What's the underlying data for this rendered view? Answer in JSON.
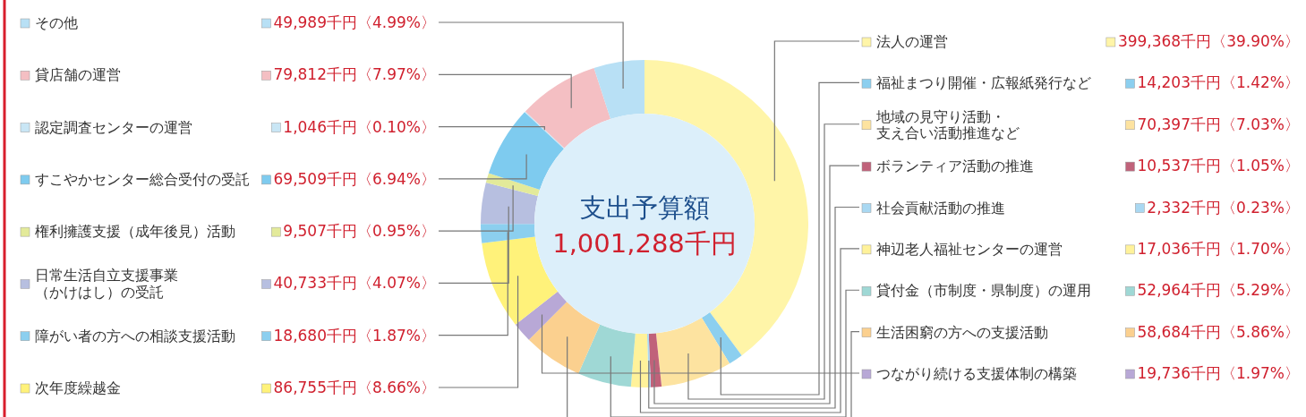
{
  "chart_data": {
    "type": "donut",
    "legend": "top left",
    "title": "支出予算額",
    "subtitle": "1,001,288千円",
    "categories": [
      "法人の運営",
      "福祉まつり開催・広報紙発行など",
      "地域の見守り活動・支え合い活動推進など",
      "ボランティア活動の推進",
      "社会貢献活動の推進",
      "神辺老人福祉センターの運営",
      "貸付金（市制度・県制度）の運用",
      "生活困窮の方への支援活動",
      "つながり続ける支援体制の構築",
      "次年度繰越金",
      "障がい者の方への相談支援活動",
      "日常生活自立支援事業（かけはし）の受託",
      "権利擁護支援（成年後見）活動",
      "すこやかセンター総合受付の受託",
      "認定調査センターの運営",
      "貸店舗の運営",
      "その他"
    ],
    "values": [
      399368,
      14203,
      70397,
      10537,
      2332,
      17036,
      52964,
      58684,
      19736,
      86755,
      18680,
      40733,
      9507,
      69509,
      1046,
      79812,
      49989
    ],
    "value_labels": [
      "399,368千円〈39.90%〉",
      "14,203千円〈1.42%〉",
      "70,397千円〈7.03%〉",
      "10,537千円〈1.05%〉",
      "2,332千円〈0.23%〉",
      "17,036千円〈1.70%〉",
      "52,964千円〈5.29%〉",
      "58,684千円〈5.86%〉",
      "19,736千円〈1.97%〉",
      "86,755千円〈8.66%〉",
      "18,680千円〈1.87%〉",
      "40,733千円〈4.07%〉",
      "9,507千円〈0.95%〉",
      "69,509千円〈6.94%〉",
      "1,046千円〈0.10%〉",
      "79,812千円〈7.97%〉",
      "49,989千円〈4.99%〉"
    ],
    "colors": [
      "#fff5a8",
      "#8ccfef",
      "#fde3a0",
      "#c0627a",
      "#a9d8f2",
      "#fff29a",
      "#9fd8d5",
      "#fbd08f",
      "#b8a8d6",
      "#fff27a",
      "#8ccfef",
      "#b7bfe0",
      "#e3ea9a",
      "#7ecbef",
      "#c9e6f5",
      "#f4bfc3",
      "#b8e0f5"
    ]
  }
}
